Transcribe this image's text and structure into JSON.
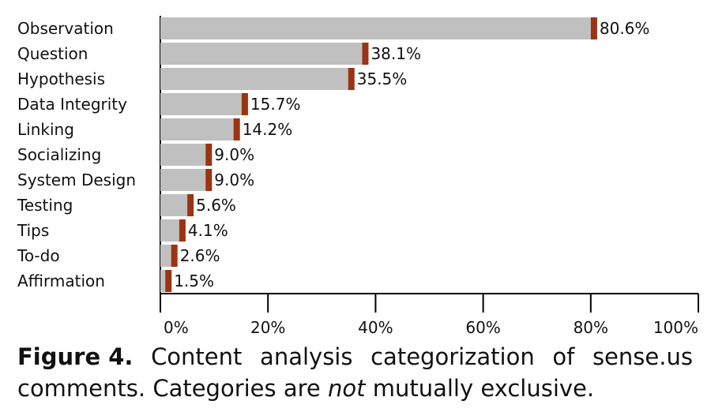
{
  "chart_data": {
    "type": "bar",
    "orientation": "horizontal",
    "categories": [
      "Observation",
      "Question",
      "Hypothesis",
      "Data Integrity",
      "Linking",
      "Socializing",
      "System Design",
      "Testing",
      "Tips",
      "To-do",
      "Affirmation"
    ],
    "values": [
      80.6,
      38.1,
      35.5,
      15.7,
      14.2,
      9.0,
      9.0,
      5.6,
      4.1,
      2.6,
      1.5
    ],
    "value_labels": [
      "80.6%",
      "38.1%",
      "35.5%",
      "15.7%",
      "14.2%",
      "9.0%",
      "9.0%",
      "5.6%",
      "4.1%",
      "2.6%",
      "1.5%"
    ],
    "xlim": [
      0,
      100
    ],
    "x_ticks": [
      0,
      20,
      40,
      60,
      80,
      100
    ],
    "x_tick_labels": [
      "0%",
      "20%",
      "40%",
      "60%",
      "80%",
      "100%"
    ],
    "grid": false,
    "colors": {
      "bar": "#c0c0c0",
      "bar_end_marker": "#9a3412",
      "axis": "#000000"
    }
  },
  "caption": {
    "figure_label": "Figure 4.",
    "words": [
      "Content",
      "analysis",
      "categorization",
      "of",
      "sense.us"
    ],
    "line2_before": "comments. Categories are ",
    "line2_emphasis": "not",
    "line2_after": " mutually exclusive."
  }
}
